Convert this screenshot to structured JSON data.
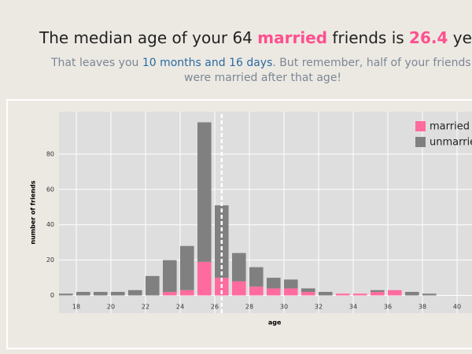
{
  "header": {
    "title": [
      "The median age of your 64 ",
      "married",
      " friends is ",
      "26.4",
      " years o"
    ],
    "subtitle": [
      [
        "That leaves you ",
        "10 months and 16 days",
        ". But remember, half of your friends"
      ],
      [
        "were married after that age!"
      ]
    ]
  },
  "chart_data": {
    "type": "histogram",
    "bins": [
      17,
      18,
      19,
      20,
      21,
      22,
      23,
      24,
      25,
      26,
      27,
      28,
      29,
      30,
      31,
      32,
      33,
      34,
      35,
      36,
      37,
      38,
      39
    ],
    "series": [
      {
        "name": "married",
        "color": "#ff6b9e",
        "values": [
          0,
          0,
          0,
          0,
          0,
          0,
          2,
          3,
          19,
          10,
          8,
          5,
          4,
          4,
          2,
          0,
          1,
          1,
          2,
          3,
          0,
          0
        ]
      },
      {
        "name": "unmarried",
        "color": "#808080",
        "values": [
          1,
          2,
          2,
          2,
          3,
          11,
          18,
          25,
          79,
          41,
          16,
          11,
          6,
          5,
          2,
          2,
          0,
          0,
          1,
          0,
          2,
          1
        ]
      }
    ],
    "median": 26.4,
    "xlabel": "age",
    "ylabel": "number of friends",
    "xlim": [
      17,
      41.2
    ],
    "ylim": [
      -10,
      104
    ],
    "xticks": [
      18,
      20,
      22,
      24,
      26,
      28,
      30,
      32,
      34,
      36,
      38,
      40
    ],
    "yticks": [
      0,
      20,
      40,
      60,
      80
    ],
    "grid": true,
    "legend": "top-right"
  }
}
